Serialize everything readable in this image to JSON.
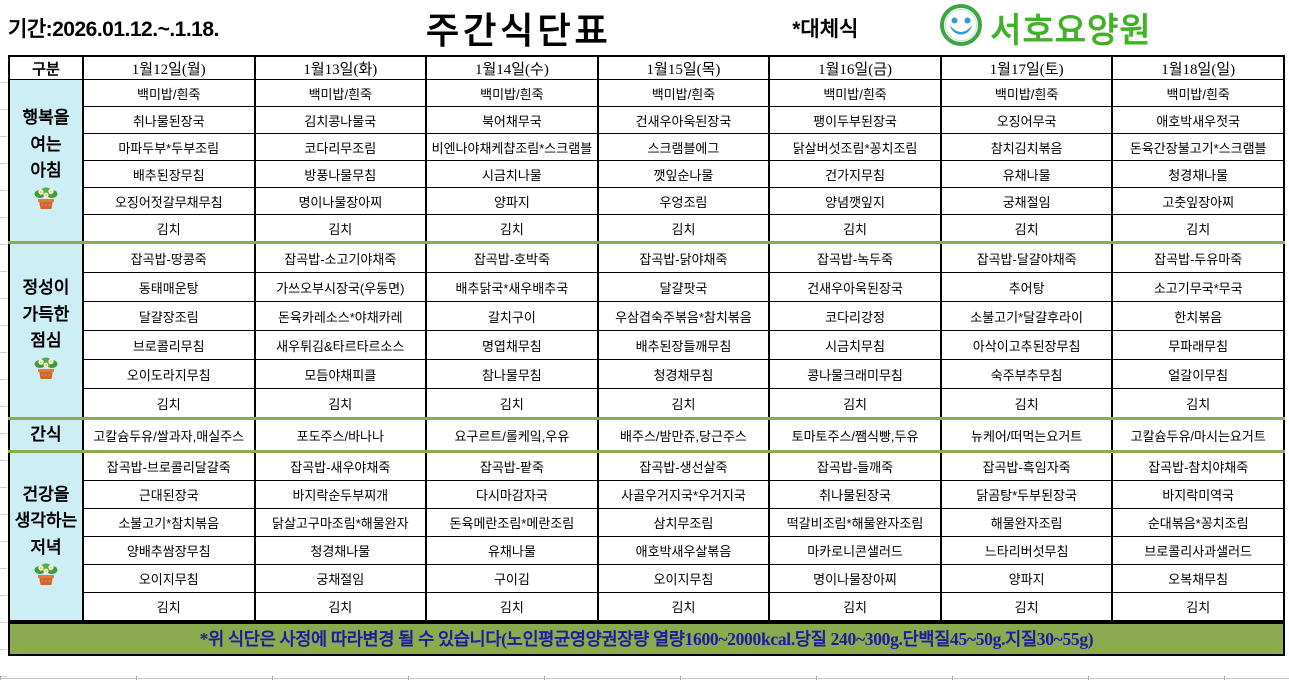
{
  "header": {
    "period": "기간:2026.01.12.~.1.18.",
    "title": "주간식단표",
    "note": "*대체식",
    "org": "서호요양원"
  },
  "colors": {
    "section_label_bg": "#cdeef5",
    "divider_green": "#8cab4f",
    "footer_bg": "#8cab4f",
    "footer_text": "#1b1d9e",
    "org_green": "#43b02a",
    "logo_blue": "#2e9cd6"
  },
  "icons": {
    "flower_pot": "flower-pot-icon",
    "logo": "smiley-face-logo-icon"
  },
  "table": {
    "corner": "구분",
    "days": [
      "1월12일(월)",
      "1월13일(화)",
      "1월14일(수)",
      "1월15일(목)",
      "1월16일(금)",
      "1월17일(토)",
      "1월18일(일)"
    ],
    "sections": [
      {
        "id": "breakfast",
        "label_lines": [
          "행복을",
          "여는",
          "아침"
        ],
        "flower": true,
        "rows": [
          [
            "백미밥/흰죽",
            "백미밥/흰죽",
            "백미밥/흰죽",
            "백미밥/흰죽",
            "백미밥/흰죽",
            "백미밥/흰죽",
            "백미밥/흰죽"
          ],
          [
            "취나물된장국",
            "김치콩나물국",
            "북어채무국",
            "건새우아욱된장국",
            "팽이두부된장국",
            "오징어무국",
            "애호박새우젓국"
          ],
          [
            "마파두부*두부조림",
            "코다리무조림",
            "비엔나야채케챱조림*스크램블",
            "스크램블에그",
            "닭살버섯조림*꽁치조림",
            "참치김치볶음",
            "돈육간장불고기*스크램블"
          ],
          [
            "배추된장무침",
            "방풍나물무침",
            "시금치나물",
            "깻잎순나물",
            "건가지무침",
            "유채나물",
            "청경채나물"
          ],
          [
            "오징어젓갈무채무침",
            "명이나물장아찌",
            "양파지",
            "우엉조림",
            "양념깻잎지",
            "궁채절임",
            "고춧잎장아찌"
          ],
          [
            "김치",
            "김치",
            "김치",
            "김치",
            "김치",
            "김치",
            "김치"
          ]
        ]
      },
      {
        "id": "lunch",
        "label_lines": [
          "정성이",
          "가득한",
          "점심"
        ],
        "flower": true,
        "rows": [
          [
            "잡곡밥-땅콩죽",
            "잡곡밥-소고기야채죽",
            "잡곡밥-호박죽",
            "잡곡밥-닭야채죽",
            "잡곡밥-녹두죽",
            "잡곡밥-달걀야채죽",
            "잡곡밥-두유마죽"
          ],
          [
            "동태매운탕",
            "가쓰오부시장국(우동면)",
            "배추닭국*새우배추국",
            "달걀팟국",
            "건새우아욱된장국",
            "추어탕",
            "소고기무국*무국"
          ],
          [
            "달걀장조림",
            "돈육카레소스*야채카레",
            "갈치구이",
            "우삼겹숙주볶음*참치볶음",
            "코다리강정",
            "소불고기*달걀후라이",
            "한치볶음"
          ],
          [
            "브로콜리무침",
            "새우튀김&타르타르소스",
            "명엽채무침",
            "배추된장들깨무침",
            "시금치무침",
            "아삭이고추된장무침",
            "무파래무침"
          ],
          [
            "오이도라지무침",
            "모듬야채피클",
            "참나물무침",
            "청경채무침",
            "콩나물크래미무침",
            "숙주부추무침",
            "얼갈이무침"
          ],
          [
            "김치",
            "김치",
            "김치",
            "김치",
            "김치",
            "김치",
            "김치"
          ]
        ]
      },
      {
        "id": "snack",
        "label_lines": [
          "간식"
        ],
        "flower": false,
        "rows": [
          [
            "고칼슘두유/쌀과자,매실주스",
            "포도주스/바나나",
            "요구르트/롤케잌,우유",
            "배주스/밤만쥬,당근주스",
            "토마토주스/쨈식빵,두유",
            "뉴케어/떠먹는요거트",
            "고칼슘두유/마시는요거트"
          ]
        ]
      },
      {
        "id": "dinner",
        "label_lines": [
          "건강을",
          "생각하는",
          "저녁"
        ],
        "flower": true,
        "rows": [
          [
            "잡곡밥-브로콜리달걀죽",
            "잡곡밥-새우야채죽",
            "잡곡밥-팥죽",
            "잡곡밥-생선살죽",
            "잡곡밥-들깨죽",
            "잡곡밥-흑임자죽",
            "잡곡밥-참치야채죽"
          ],
          [
            "근대된장국",
            "바지락순두부찌개",
            "다시마감자국",
            "사골우거지국*우거지국",
            "취나물된장국",
            "닭곰탕*두부된장국",
            "바지락미역국"
          ],
          [
            "소불고기*참치볶음",
            "닭살고구마조림*해물완자",
            "돈육메란조림*메란조림",
            "삼치무조림",
            "떡갈비조림*해물완자조림",
            "해물완자조림",
            "순대볶음*꽁치조림"
          ],
          [
            "양배추쌈장무침",
            "청경채나물",
            "유채나물",
            "애호박새우살볶음",
            "마카로니콘샐러드",
            "느타리버섯무침",
            "브로콜리사과샐러드"
          ],
          [
            "오이지무침",
            "궁채절임",
            "구이김",
            "오이지무침",
            "명이나물장아찌",
            "양파지",
            "오복채무침"
          ],
          [
            "김치",
            "김치",
            "김치",
            "김치",
            "김치",
            "김치",
            "김치"
          ]
        ]
      }
    ]
  },
  "footer": {
    "text": "*위 식단은 사정에 따라변경 될 수 있습니다(노인평균영양권장량 열량1600~2000kcal.당질 240~300g.단백질45~50g.지질30~55g)"
  }
}
